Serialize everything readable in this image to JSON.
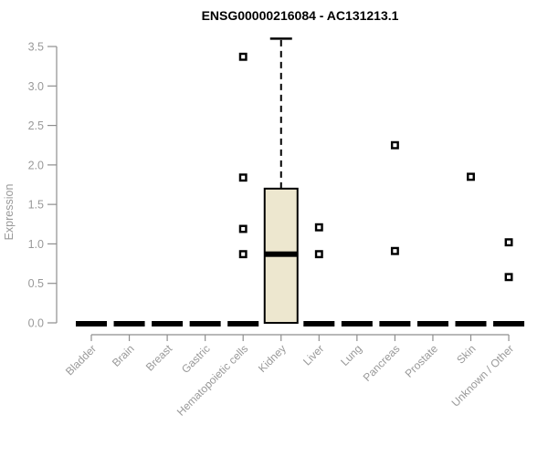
{
  "chart_data": {
    "type": "boxplot",
    "title": "ENSG00000216084 - AC131213.1",
    "xlabel": "",
    "ylabel": "Expression",
    "ylim": [
      0,
      3.5
    ],
    "yticks": [
      0.0,
      0.5,
      1.0,
      1.5,
      2.0,
      2.5,
      3.0,
      3.5
    ],
    "grid": false,
    "legend": "none",
    "categories": [
      "Bladder",
      "Brain",
      "Breast",
      "Gastric",
      "Hematopoietic cells",
      "Kidney",
      "Liver",
      "Lung",
      "Pancreas",
      "Prostate",
      "Skin",
      "Unknown / Other"
    ],
    "boxes": [
      {
        "category": "Bladder",
        "min": 0,
        "q1": 0,
        "median": 0,
        "q3": 0,
        "max": 0,
        "outliers": []
      },
      {
        "category": "Brain",
        "min": 0,
        "q1": 0,
        "median": 0,
        "q3": 0,
        "max": 0,
        "outliers": []
      },
      {
        "category": "Breast",
        "min": 0,
        "q1": 0,
        "median": 0,
        "q3": 0,
        "max": 0,
        "outliers": []
      },
      {
        "category": "Gastric",
        "min": 0,
        "q1": 0,
        "median": 0,
        "q3": 0,
        "max": 0,
        "outliers": []
      },
      {
        "category": "Hematopoietic cells",
        "min": 0,
        "q1": 0,
        "median": 0,
        "q3": 0,
        "max": 0,
        "outliers": [
          3.37,
          1.84,
          1.19,
          0.87
        ]
      },
      {
        "category": "Kidney",
        "min": 0,
        "q1": 0,
        "median": 0.87,
        "q3": 1.7,
        "max": 3.6,
        "outliers": []
      },
      {
        "category": "Liver",
        "min": 0,
        "q1": 0,
        "median": 0,
        "q3": 0,
        "max": 0,
        "outliers": [
          1.21,
          0.87
        ]
      },
      {
        "category": "Lung",
        "min": 0,
        "q1": 0,
        "median": 0,
        "q3": 0,
        "max": 0,
        "outliers": []
      },
      {
        "category": "Pancreas",
        "min": 0,
        "q1": 0,
        "median": 0,
        "q3": 0,
        "max": 0,
        "outliers": [
          2.25,
          0.91
        ]
      },
      {
        "category": "Prostate",
        "min": 0,
        "q1": 0,
        "median": 0,
        "q3": 0,
        "max": 0,
        "outliers": []
      },
      {
        "category": "Skin",
        "min": 0,
        "q1": 0,
        "median": 0,
        "q3": 0,
        "max": 0,
        "outliers": [
          1.85
        ]
      },
      {
        "category": "Unknown / Other",
        "min": 0,
        "q1": 0,
        "median": 0,
        "q3": 0,
        "max": 0,
        "outliers": [
          1.02,
          0.58
        ]
      }
    ],
    "colors": {
      "box_fill": "#EDE7CF",
      "box_border": "#000000",
      "median": "#000000",
      "whisker": "#000000",
      "zero_bar": "#000000",
      "outlier": "#000000",
      "axis_line": "#8E8E8E",
      "tick_label": "#999999",
      "title": "#000000",
      "background": "#FFFFFF"
    }
  }
}
